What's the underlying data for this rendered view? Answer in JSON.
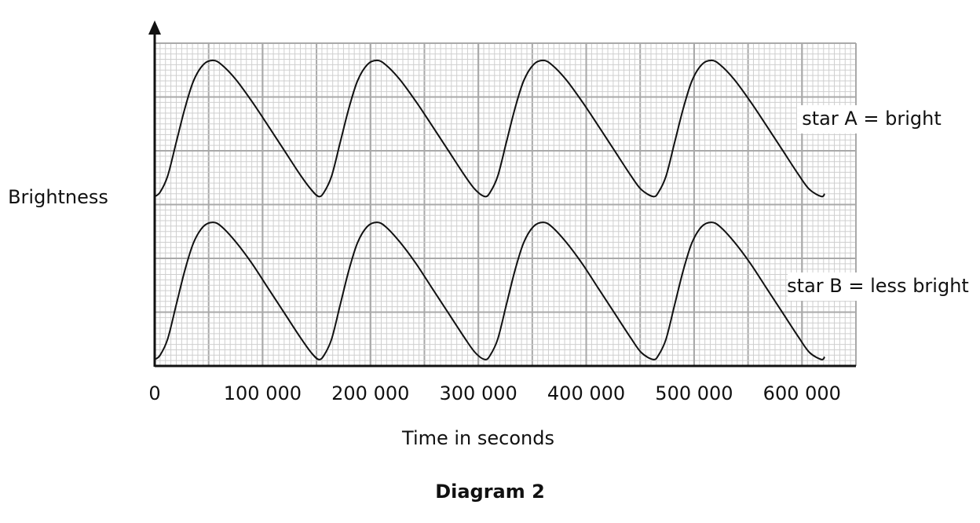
{
  "chart_data": {
    "type": "line",
    "caption": "Diagram 2",
    "x_label": "Time in seconds",
    "y_label": "Brightness",
    "xlim": [
      0,
      650000
    ],
    "ylim": [
      0,
      6
    ],
    "xticks": [
      0,
      {
        "value": 100000,
        "label": "100 000"
      },
      {
        "value": 200000,
        "label": "200 000"
      },
      {
        "value": 300000,
        "label": "300 000"
      },
      {
        "value": 400000,
        "label": "400 000"
      },
      {
        "value": 500000,
        "label": "500 000"
      },
      {
        "value": 600000,
        "label": "600 000"
      }
    ],
    "ygrid": [
      0,
      1,
      2,
      3,
      4,
      5,
      6
    ],
    "grid": true,
    "x": [
      0,
      5000,
      12000,
      20000,
      28000,
      36000,
      45000,
      54000,
      62000,
      75000,
      90000,
      105000,
      120000,
      135000,
      145000,
      152000,
      157000,
      164000,
      172000,
      180000,
      188000,
      197000,
      206000,
      214000,
      227000,
      242000,
      257000,
      272000,
      287000,
      297000,
      306000,
      311000,
      318000,
      326000,
      334000,
      342000,
      351000,
      360000,
      368000,
      381000,
      396000,
      411000,
      426000,
      441000,
      451000,
      462000,
      467000,
      474000,
      482000,
      490000,
      498000,
      507000,
      516000,
      524000,
      537000,
      552000,
      567000,
      582000,
      597000,
      607000,
      618000,
      621000
    ],
    "series": [
      {
        "name": "star A = bright",
        "color": "#111111",
        "values": [
          3.15,
          3.23,
          3.53,
          4.16,
          4.79,
          5.3,
          5.6,
          5.68,
          5.6,
          5.33,
          4.92,
          4.47,
          4.01,
          3.55,
          3.28,
          3.15,
          3.23,
          3.53,
          4.16,
          4.79,
          5.3,
          5.6,
          5.68,
          5.6,
          5.33,
          4.92,
          4.47,
          4.01,
          3.55,
          3.28,
          3.15,
          3.23,
          3.53,
          4.16,
          4.79,
          5.3,
          5.6,
          5.68,
          5.6,
          5.33,
          4.92,
          4.47,
          4.01,
          3.55,
          3.28,
          3.15,
          3.23,
          3.53,
          4.16,
          4.79,
          5.3,
          5.6,
          5.68,
          5.6,
          5.33,
          4.92,
          4.47,
          4.01,
          3.55,
          3.28,
          3.15,
          3.2
        ]
      },
      {
        "name": "star B = less bright",
        "color": "#111111",
        "values": [
          0.12,
          0.2,
          0.5,
          1.14,
          1.78,
          2.29,
          2.59,
          2.67,
          2.59,
          2.31,
          1.91,
          1.45,
          0.99,
          0.53,
          0.25,
          0.12,
          0.2,
          0.5,
          1.14,
          1.78,
          2.29,
          2.59,
          2.67,
          2.59,
          2.31,
          1.91,
          1.45,
          0.99,
          0.53,
          0.25,
          0.12,
          0.2,
          0.5,
          1.14,
          1.78,
          2.29,
          2.59,
          2.67,
          2.59,
          2.31,
          1.91,
          1.45,
          0.99,
          0.53,
          0.25,
          0.12,
          0.2,
          0.5,
          1.14,
          1.78,
          2.29,
          2.59,
          2.67,
          2.59,
          2.31,
          1.91,
          1.45,
          0.99,
          0.53,
          0.25,
          0.12,
          0.17
        ]
      }
    ]
  }
}
